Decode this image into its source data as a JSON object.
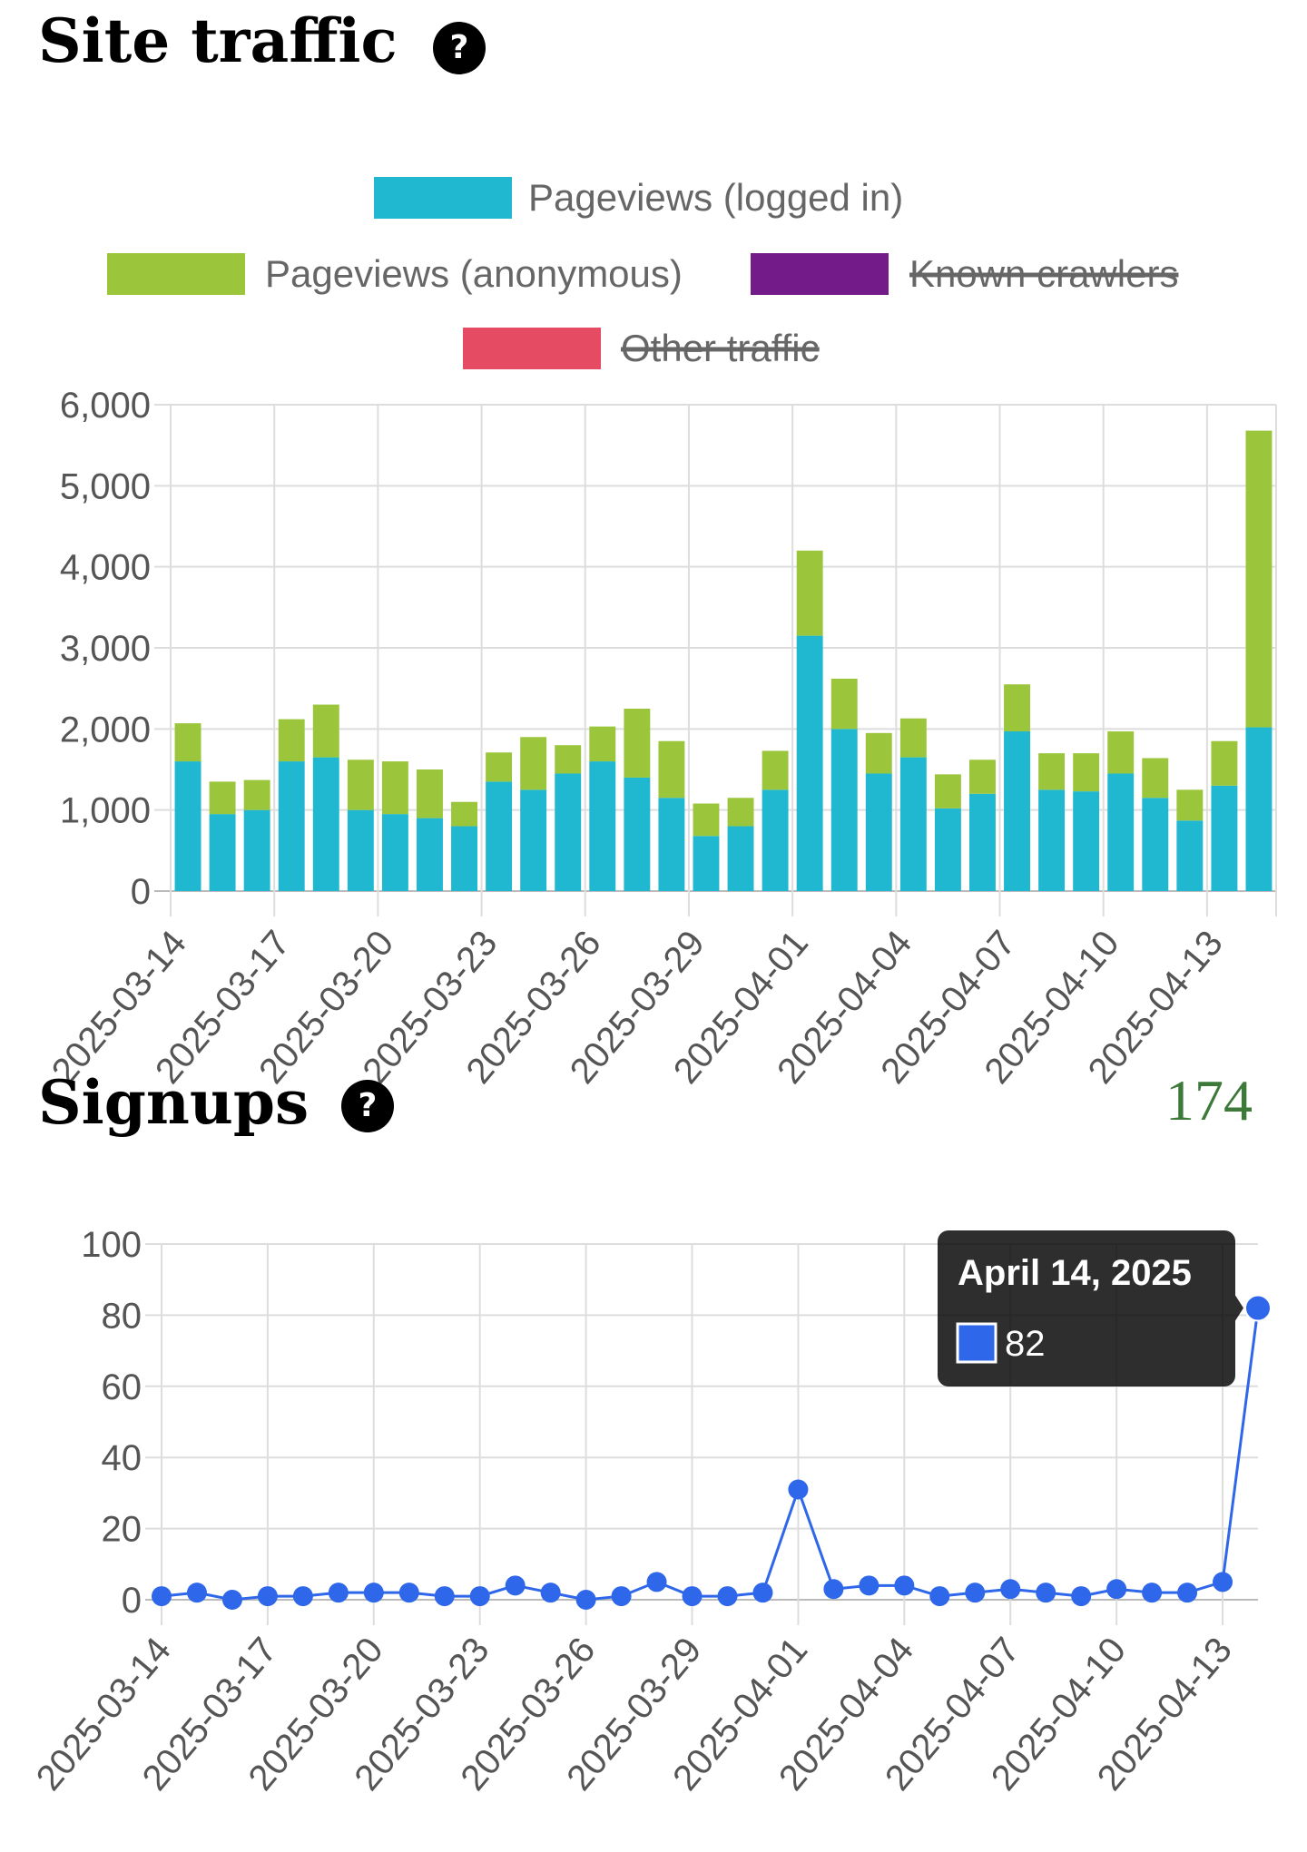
{
  "traffic": {
    "title": "Site traffic",
    "help_icon": "question-circle-icon",
    "chart_data": {
      "type": "bar",
      "stacked": true,
      "categories": [
        "2025-03-14",
        "2025-03-15",
        "2025-03-16",
        "2025-03-17",
        "2025-03-18",
        "2025-03-19",
        "2025-03-20",
        "2025-03-21",
        "2025-03-22",
        "2025-03-23",
        "2025-03-24",
        "2025-03-25",
        "2025-03-26",
        "2025-03-27",
        "2025-03-28",
        "2025-03-29",
        "2025-03-30",
        "2025-03-31",
        "2025-04-01",
        "2025-04-02",
        "2025-04-03",
        "2025-04-04",
        "2025-04-05",
        "2025-04-06",
        "2025-04-07",
        "2025-04-08",
        "2025-04-09",
        "2025-04-10",
        "2025-04-11",
        "2025-04-12",
        "2025-04-13",
        "2025-04-14"
      ],
      "tick_labels": [
        "2025-03-14",
        "2025-03-17",
        "2025-03-20",
        "2025-03-23",
        "2025-03-26",
        "2025-03-29",
        "2025-04-01",
        "2025-04-04",
        "2025-04-07",
        "2025-04-10",
        "2025-04-13"
      ],
      "series": [
        {
          "name": "Pageviews (logged in)",
          "color": "#1fb8d0",
          "hidden": false,
          "values": [
            1600,
            950,
            1000,
            1600,
            1650,
            1000,
            950,
            900,
            800,
            1350,
            1250,
            1450,
            1600,
            1400,
            1150,
            680,
            800,
            1250,
            3150,
            2000,
            1450,
            1650,
            1020,
            1200,
            1970,
            1250,
            1230,
            1450,
            1150,
            870,
            1300,
            2020
          ]
        },
        {
          "name": "Pageviews (anonymous)",
          "color": "#9bc63c",
          "hidden": false,
          "values": [
            470,
            400,
            370,
            520,
            650,
            620,
            650,
            600,
            300,
            360,
            650,
            350,
            430,
            850,
            700,
            400,
            350,
            480,
            1050,
            620,
            500,
            480,
            420,
            420,
            580,
            450,
            470,
            520,
            490,
            380,
            550,
            3660
          ]
        },
        {
          "name": "Known crawlers",
          "color": "#741b8a",
          "hidden": true
        },
        {
          "name": "Other traffic",
          "color": "#e54c63",
          "hidden": true
        }
      ],
      "ylim": [
        0,
        6000
      ],
      "yticks": [
        "0",
        "1,000",
        "2,000",
        "3,000",
        "4,000",
        "5,000",
        "6,000"
      ],
      "grid": true,
      "legend": "top"
    }
  },
  "signups": {
    "title": "Signups",
    "help_icon": "question-circle-icon",
    "total": "174",
    "chart_data": {
      "type": "line",
      "categories": [
        "2025-03-14",
        "2025-03-15",
        "2025-03-16",
        "2025-03-17",
        "2025-03-18",
        "2025-03-19",
        "2025-03-20",
        "2025-03-21",
        "2025-03-22",
        "2025-03-23",
        "2025-03-24",
        "2025-03-25",
        "2025-03-26",
        "2025-03-27",
        "2025-03-28",
        "2025-03-29",
        "2025-03-30",
        "2025-03-31",
        "2025-04-01",
        "2025-04-02",
        "2025-04-03",
        "2025-04-04",
        "2025-04-05",
        "2025-04-06",
        "2025-04-07",
        "2025-04-08",
        "2025-04-09",
        "2025-04-10",
        "2025-04-11",
        "2025-04-12",
        "2025-04-13",
        "2025-04-14"
      ],
      "tick_labels": [
        "2025-03-14",
        "2025-03-17",
        "2025-03-20",
        "2025-03-23",
        "2025-03-26",
        "2025-03-29",
        "2025-04-01",
        "2025-04-04",
        "2025-04-07",
        "2025-04-10",
        "2025-04-13"
      ],
      "series": [
        {
          "color": "#2f67ea",
          "values": [
            1,
            2,
            0,
            1,
            1,
            2,
            2,
            2,
            1,
            1,
            4,
            2,
            0,
            1,
            5,
            1,
            1,
            2,
            31,
            3,
            4,
            4,
            1,
            2,
            3,
            2,
            1,
            3,
            2,
            2,
            5,
            82
          ]
        }
      ],
      "ylim": [
        0,
        100
      ],
      "yticks": [
        "0",
        "20",
        "40",
        "60",
        "80",
        "100"
      ],
      "grid": true,
      "tooltip": {
        "title": "April 14, 2025",
        "value": "82"
      }
    }
  }
}
